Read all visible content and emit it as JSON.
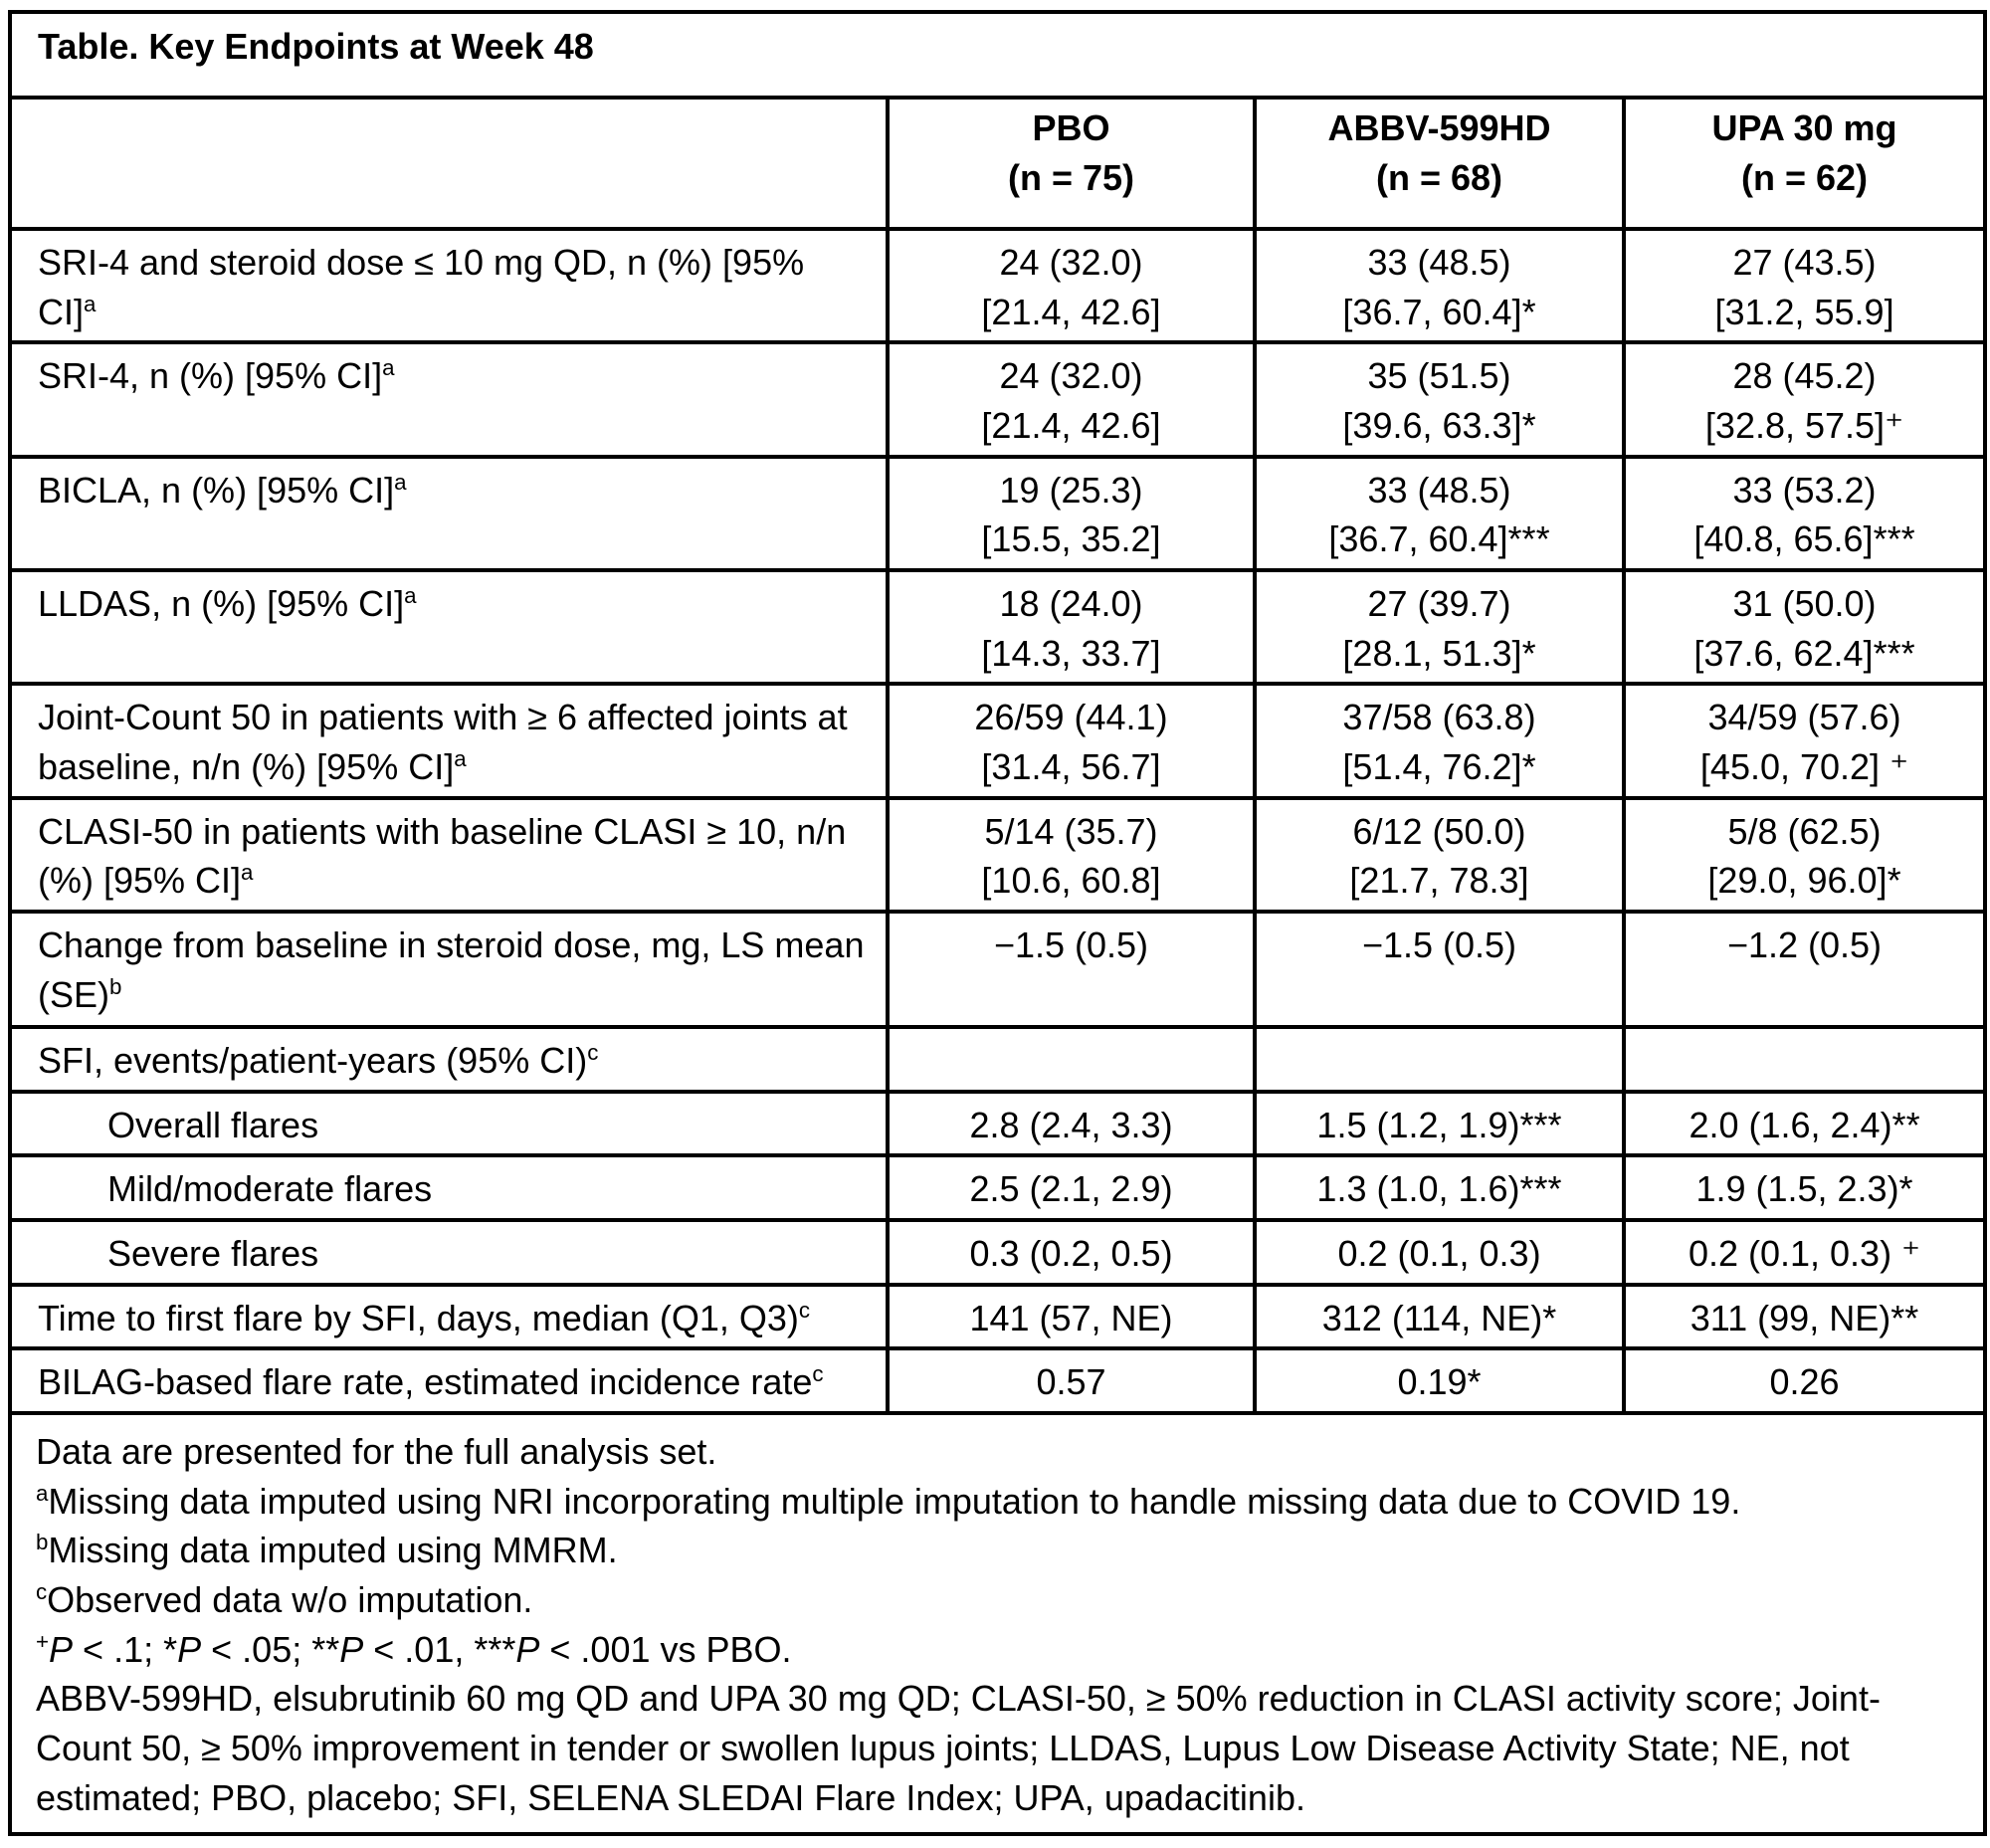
{
  "table": {
    "title": "Table. Key Endpoints at Week 48",
    "columns": [
      {
        "name": "PBO",
        "n": "(n = 75)"
      },
      {
        "name": "ABBV-599HD",
        "n": "(n = 68)"
      },
      {
        "name": "UPA 30 mg",
        "n": "(n = 62)"
      }
    ],
    "rows": [
      {
        "label": "SRI-4 and steroid dose ≤ 10 mg QD, n (%) [95% CI]",
        "sup": "a",
        "values": [
          [
            "24 (32.0)",
            "[21.4, 42.6]"
          ],
          [
            "33 (48.5)",
            "[36.7, 60.4]*"
          ],
          [
            "27 (43.5)",
            "[31.2, 55.9]"
          ]
        ]
      },
      {
        "label": "SRI-4, n (%) [95% CI]",
        "sup": "a",
        "values": [
          [
            "24 (32.0)",
            "[21.4, 42.6]"
          ],
          [
            "35 (51.5)",
            "[39.6, 63.3]*"
          ],
          [
            "28 (45.2)",
            "[32.8, 57.5]⁺"
          ]
        ]
      },
      {
        "label": "BICLA, n (%) [95% CI]",
        "sup": "a",
        "values": [
          [
            "19 (25.3)",
            "[15.5, 35.2]"
          ],
          [
            "33 (48.5)",
            "[36.7, 60.4]***"
          ],
          [
            "33 (53.2)",
            "[40.8, 65.6]***"
          ]
        ]
      },
      {
        "label": "LLDAS, n (%) [95% CI]",
        "sup": "a",
        "values": [
          [
            "18 (24.0)",
            "[14.3, 33.7]"
          ],
          [
            "27 (39.7)",
            "[28.1, 51.3]*"
          ],
          [
            "31 (50.0)",
            "[37.6, 62.4]***"
          ]
        ]
      },
      {
        "label": "Joint-Count 50 in patients with ≥ 6 affected joints at baseline, n/n (%) [95% CI]",
        "sup": "a",
        "values": [
          [
            "26/59 (44.1)",
            "[31.4, 56.7]"
          ],
          [
            "37/58 (63.8)",
            "[51.4, 76.2]*"
          ],
          [
            "34/59 (57.6)",
            "[45.0, 70.2] ⁺"
          ]
        ]
      },
      {
        "label": "CLASI-50 in patients with baseline CLASI ≥ 10, n/n (%) [95% CI]",
        "sup": "a",
        "values": [
          [
            "5/14 (35.7)",
            "[10.6, 60.8]"
          ],
          [
            "6/12 (50.0)",
            "[21.7, 78.3]"
          ],
          [
            "5/8 (62.5)",
            "[29.0, 96.0]*"
          ]
        ]
      },
      {
        "label": "Change from baseline in steroid dose, mg, LS mean (SE)",
        "sup": "b",
        "values": [
          [
            "−1.5 (0.5)"
          ],
          [
            "−1.5 (0.5)"
          ],
          [
            "−1.2 (0.5)"
          ]
        ]
      },
      {
        "label": "SFI, events/patient-years (95% CI)",
        "sup": "c",
        "values": [
          [],
          [],
          []
        ]
      },
      {
        "label": "Overall flares",
        "indent": true,
        "values": [
          [
            "2.8 (2.4, 3.3)"
          ],
          [
            "1.5 (1.2, 1.9)***"
          ],
          [
            "2.0 (1.6, 2.4)**"
          ]
        ]
      },
      {
        "label": "Mild/moderate flares",
        "indent": true,
        "values": [
          [
            "2.5 (2.1, 2.9)"
          ],
          [
            "1.3 (1.0, 1.6)***"
          ],
          [
            "1.9 (1.5, 2.3)*"
          ]
        ]
      },
      {
        "label": "Severe flares",
        "indent": true,
        "values": [
          [
            "0.3 (0.2, 0.5)"
          ],
          [
            "0.2 (0.1, 0.3)"
          ],
          [
            "0.2 (0.1, 0.3) ⁺"
          ]
        ]
      },
      {
        "label": "Time to first flare by SFI, days, median (Q1, Q3)",
        "sup": "c",
        "values": [
          [
            "141 (57, NE)"
          ],
          [
            "312 (114, NE)*"
          ],
          [
            "311 (99, NE)**"
          ]
        ]
      },
      {
        "label": "BILAG-based flare rate, estimated incidence rate",
        "sup": "c",
        "values": [
          [
            "0.57"
          ],
          [
            "0.19*"
          ],
          [
            "0.26"
          ]
        ]
      }
    ],
    "footnotes": [
      [
        {
          "t": "Data are presented for the full analysis set."
        }
      ],
      [
        {
          "t": "a",
          "sup": true
        },
        {
          "t": "Missing data imputed using NRI incorporating multiple imputation to handle missing data due to COVID 19."
        }
      ],
      [
        {
          "t": "b",
          "sup": true
        },
        {
          "t": "Missing data imputed using MMRM."
        }
      ],
      [
        {
          "t": "c",
          "sup": true
        },
        {
          "t": "Observed data w/o imputation."
        }
      ],
      [
        {
          "t": "+",
          "sup": true
        },
        {
          "t": "P",
          "i": true
        },
        {
          "t": " < .1; *"
        },
        {
          "t": "P",
          "i": true
        },
        {
          "t": " < .05; **"
        },
        {
          "t": "P",
          "i": true
        },
        {
          "t": " < .01, ***"
        },
        {
          "t": "P",
          "i": true
        },
        {
          "t": " < .001 vs PBO."
        }
      ],
      [
        {
          "t": "ABBV-599HD, elsubrutinib 60 mg QD and UPA 30 mg QD; CLASI-50, ≥ 50% reduction in CLASI activity score; Joint-Count 50, ≥ 50% improvement in tender or swollen lupus joints; LLDAS, Lupus Low Disease Activity State; NE, not estimated; PBO, placebo; SFI, SELENA SLEDAI Flare Index; UPA, upadacitinib."
        }
      ]
    ]
  }
}
